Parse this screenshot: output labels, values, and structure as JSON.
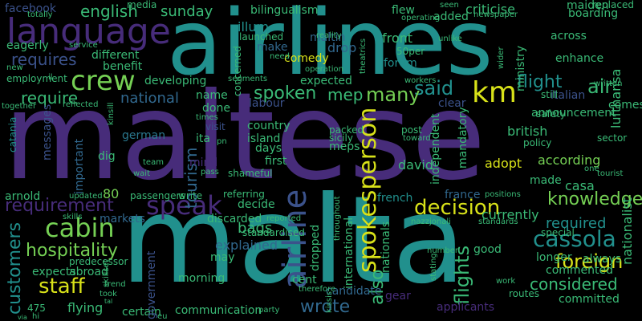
{
  "colors": {
    "background": "#000000",
    "purple": "#472c7a",
    "teal": "#21908d",
    "green": "#3aba76",
    "yellow": "#d8e219",
    "blue": "#31688e",
    "indigo": "#3b528b",
    "lime": "#75d054",
    "cyan": "#2a788e",
    "dark": "#44015a",
    "mint": "#5ec962"
  },
  "words": [
    "maltese",
    "airlines",
    "malta",
    "language",
    "crew",
    "km",
    "airline",
    "speak",
    "cabin",
    "spokesperson",
    "decision",
    "requirement",
    "staff",
    "cassola",
    "hospitality",
    "customers",
    "said",
    "knowledge",
    "requires",
    "english",
    "facebook",
    "sunday",
    "mep",
    "many",
    "spoken",
    "require",
    "flight",
    "air",
    "foreign",
    "considered",
    "wrote",
    "also",
    "flights",
    "required",
    "tourism",
    "national",
    "illum",
    "front",
    "comedy",
    "forum",
    "make",
    "drop",
    "expected",
    "labour",
    "bags",
    "explained",
    "german",
    "italian",
    "british",
    "lufthansa",
    "nationalist",
    "according",
    "david",
    "adopt",
    "made",
    "casa",
    "france",
    "french",
    "currently",
    "longer",
    "always",
    "commented",
    "committed",
    "good",
    "work",
    "abroad",
    "expects",
    "flying",
    "certain",
    "communication",
    "candidate",
    "applicants",
    "gear",
    "cent",
    "morning",
    "may",
    "government",
    "markets",
    "80",
    "arnold",
    "important",
    "messages",
    "catania",
    "employment",
    "eagerly",
    "totally",
    "media",
    "flew",
    "maltin",
    "added",
    "boarding",
    "across",
    "maiden",
    "replaced",
    "criticise",
    "bilingualism",
    "launched",
    "concerned",
    "developing",
    "benefit",
    "different",
    "announcement",
    "enhance",
    "ministry",
    "clear",
    "comes",
    "dig",
    "island",
    "days",
    "first",
    "meps",
    "country",
    "done",
    "name",
    "ita",
    "visit",
    "mind",
    "shameful",
    "decide",
    "referring",
    "discarded",
    "dropped",
    "international",
    "nationals",
    "independent",
    "mandatory",
    "post",
    "toward",
    "sicily",
    "packed",
    "policy",
    "sector",
    "safety",
    "still",
    "written",
    "special",
    "positions",
    "routes",
    "therefore",
    "party",
    "standardised",
    "reported",
    "skills",
    "predecessor",
    "trend",
    "took",
    "skillset",
    "hi",
    "eu",
    "475",
    "updated",
    "passengers",
    "write",
    "team",
    "wait",
    "pass",
    "tourist",
    "one",
    "nazzjonali",
    "standards",
    "number",
    "stating",
    "newspaper",
    "operating",
    "seen",
    "unlike",
    "wider",
    "reality",
    "theatrics",
    "50per",
    "need",
    "operation",
    "workers",
    "segments",
    "reflected",
    "together",
    "new",
    "il",
    "service",
    "kinsill",
    "times",
    "pn",
    "kissis",
    "throughout",
    "via",
    "tal"
  ]
}
